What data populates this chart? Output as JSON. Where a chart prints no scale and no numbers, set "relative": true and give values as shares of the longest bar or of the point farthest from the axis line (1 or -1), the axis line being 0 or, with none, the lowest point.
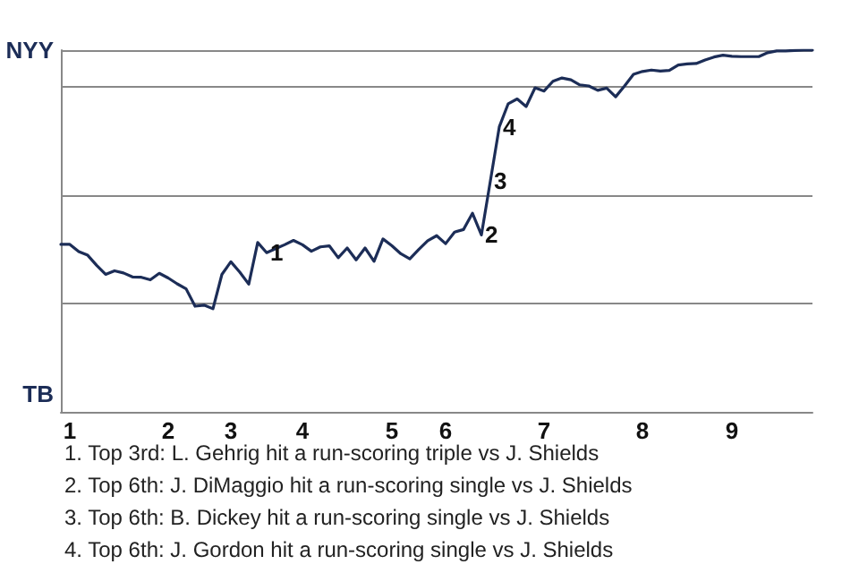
{
  "chart_data": {
    "type": "line",
    "marker": "none",
    "grid": "y",
    "relative": true,
    "categories": [
      null,
      "1",
      null,
      null,
      null,
      null,
      null,
      null,
      null,
      null,
      null,
      null,
      "2",
      null,
      null,
      null,
      null,
      null,
      null,
      "3",
      null,
      null,
      null,
      null,
      null,
      null,
      null,
      "4",
      null,
      null,
      null,
      null,
      null,
      null,
      null,
      null,
      null,
      "5",
      null,
      null,
      null,
      null,
      null,
      "6",
      null,
      null,
      null,
      null,
      null,
      null,
      null,
      null,
      null,
      null,
      "7",
      null,
      null,
      null,
      null,
      null,
      null,
      null,
      null,
      null,
      null,
      "8",
      null,
      null,
      null,
      null,
      null,
      null,
      null,
      null,
      null,
      "9",
      null,
      null,
      null,
      null,
      null,
      null,
      null,
      null,
      null
    ],
    "series": [
      {
        "color": "#1c2d57",
        "values": [
          0.463,
          0.463,
          0.443,
          0.433,
          0.405,
          0.38,
          0.39,
          0.384,
          0.373,
          0.372,
          0.365,
          0.383,
          0.37,
          0.354,
          0.34,
          0.292,
          0.295,
          0.285,
          0.38,
          0.415,
          0.386,
          0.353,
          0.468,
          0.44,
          0.451,
          0.462,
          0.474,
          0.462,
          0.444,
          0.456,
          0.459,
          0.426,
          0.453,
          0.42,
          0.453,
          0.416,
          0.478,
          0.459,
          0.437,
          0.423,
          0.449,
          0.473,
          0.487,
          0.465,
          0.497,
          0.504,
          0.549,
          0.489,
          0.638,
          0.788,
          0.852,
          0.865,
          0.844,
          0.896,
          0.887,
          0.914,
          0.923,
          0.918,
          0.904,
          0.901,
          0.889,
          0.895,
          0.871,
          0.901,
          0.933,
          0.941,
          0.945,
          0.942,
          0.944,
          0.959,
          0.962,
          0.963,
          0.973,
          0.981,
          0.986,
          0.983,
          0.982,
          0.982,
          0.982,
          0.993,
          0.998,
          0.998,
          0.999,
          1,
          1
        ]
      }
    ],
    "annotations": [
      "NYY",
      "TB",
      {
        "text": "1",
        "y": 0.44
      },
      {
        "text": "2",
        "y": 0.489
      },
      {
        "text": "3",
        "y": 0.638
      },
      {
        "text": "4",
        "y": 0.788
      },
      "1. Top 3rd: L. Gehrig hit a run-scoring triple vs J. Shields",
      "2. Top 6th: J. DiMaggio hit a run-scoring single vs J. Shields",
      "3. Top 6th: B. Dickey hit a run-scoring single vs J. Shields",
      "4. Top 6th: J. Gordon hit a run-scoring single vs J. Shields"
    ]
  }
}
